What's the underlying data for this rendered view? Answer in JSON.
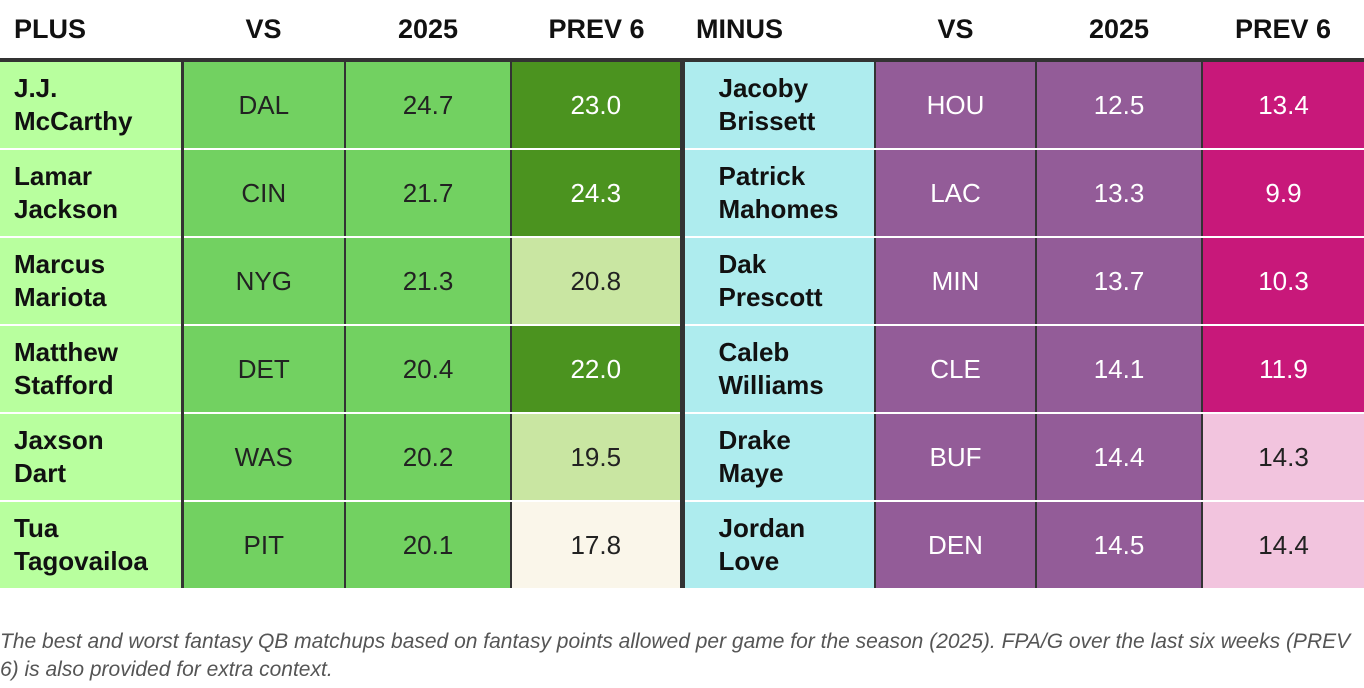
{
  "headers": {
    "plus": "PLUS",
    "plus_vs": "VS",
    "plus_2025": "2025",
    "plus_prev6": "PREV 6",
    "minus": "MINUS",
    "minus_vs": "VS",
    "minus_2025": "2025",
    "minus_prev6": "PREV 6"
  },
  "plus": [
    {
      "first": "J.J.",
      "last": "McCarthy",
      "vs": "DAL",
      "y2025": "24.7",
      "prev6": "23.0",
      "prev6_color": "#4b931f"
    },
    {
      "first": "Lamar",
      "last": "Jackson",
      "vs": "CIN",
      "y2025": "21.7",
      "prev6": "24.3",
      "prev6_color": "#4b931f"
    },
    {
      "first": "Marcus",
      "last": "Mariota",
      "vs": "NYG",
      "y2025": "21.3",
      "prev6": "20.8",
      "prev6_color": "#c9e6a2"
    },
    {
      "first": "Matthew",
      "last": "Stafford",
      "vs": "DET",
      "y2025": "20.4",
      "prev6": "22.0",
      "prev6_color": "#4b931f"
    },
    {
      "first": "Jaxson",
      "last": "Dart",
      "vs": "WAS",
      "y2025": "20.2",
      "prev6": "19.5",
      "prev6_color": "#c9e6a2"
    },
    {
      "first": "Tua",
      "last": "Tagovailoa",
      "vs": "PIT",
      "y2025": "20.1",
      "prev6": "17.8",
      "prev6_color": "#faf6ea"
    }
  ],
  "minus": [
    {
      "first": "Jacoby",
      "last": "Brissett",
      "vs": "HOU",
      "y2025": "12.5",
      "prev6": "13.4",
      "prev6_color": "#c8187a"
    },
    {
      "first": "Patrick",
      "last": "Mahomes",
      "vs": "LAC",
      "y2025": "13.3",
      "prev6": "9.9",
      "prev6_color": "#c8187a"
    },
    {
      "first": "Dak",
      "last": "Prescott",
      "vs": "MIN",
      "y2025": "13.7",
      "prev6": "10.3",
      "prev6_color": "#c8187a"
    },
    {
      "first": "Caleb",
      "last": "Williams",
      "vs": "CLE",
      "y2025": "14.1",
      "prev6": "11.9",
      "prev6_color": "#c8187a"
    },
    {
      "first": "Drake",
      "last": "Maye",
      "vs": "BUF",
      "y2025": "14.4",
      "prev6": "14.3",
      "prev6_color": "#f2c4de"
    },
    {
      "first": "Jordan",
      "last": "Love",
      "vs": "DEN",
      "y2025": "14.5",
      "prev6": "14.4",
      "prev6_color": "#f2c4de"
    }
  ],
  "colors": {
    "plus_name_bg": "#b8ff9e",
    "plus_stat_bg": "#72d161",
    "minus_name_bg": "#aeecee",
    "minus_stat_bg": "#935c98"
  },
  "caption": "The best and worst fantasy QB matchups based on fantasy points allowed per game for the season (2025). FPA/G over the last six weeks (PREV 6) is also provided for extra context."
}
